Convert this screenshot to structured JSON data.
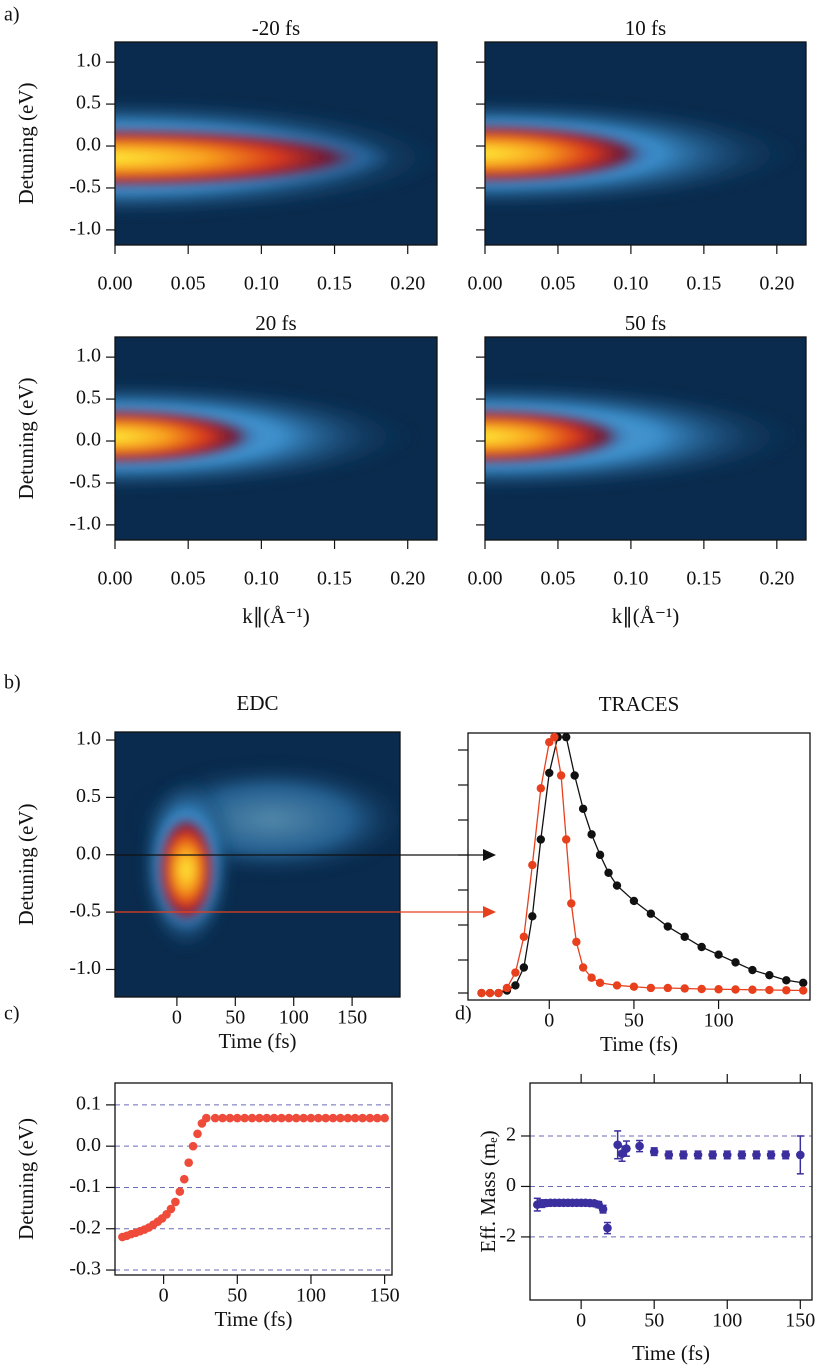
{
  "panel_labels": [
    "a)",
    "b)",
    "c)",
    "d)"
  ],
  "chart_data": [
    {
      "type": "heatmap",
      "title": "-20 fs",
      "ylabel": "Detuning (eV)",
      "xlim": [
        0,
        0.22
      ],
      "xticks": [
        {
          "value": 0,
          "label": "0.00"
        },
        {
          "value": 0.05,
          "label": "0.05"
        },
        {
          "value": 0.1,
          "label": "0.10"
        },
        {
          "value": 0.15,
          "label": "0.15"
        },
        {
          "value": 0.2,
          "label": "0.20"
        }
      ],
      "ylim": [
        -1.18,
        1.24
      ],
      "yticks": [
        {
          "value": -1,
          "label": "-1.0"
        },
        -0.5,
        {
          "value": 0,
          "label": "0.0"
        },
        0.5,
        {
          "value": 1,
          "label": "1.0"
        }
      ]
    },
    {
      "type": "heatmap",
      "title": "10 fs",
      "xlim": [
        0,
        0.22
      ],
      "xticks": [
        {
          "value": 0,
          "label": "0.00"
        },
        {
          "value": 0.05,
          "label": "0.05"
        },
        {
          "value": 0.1,
          "label": "0.10"
        },
        {
          "value": 0.15,
          "label": "0.15"
        },
        {
          "value": 0.2,
          "label": "0.20"
        }
      ],
      "ylim": [
        -1.18,
        1.24
      ],
      "yticks": [
        {
          "value": -1
        },
        {
          "value": -0.5
        },
        {
          "value": 0
        },
        {
          "value": 0.5
        },
        {
          "value": 1
        }
      ]
    },
    {
      "type": "heatmap",
      "title": "20 fs",
      "ylabel": "Detuning (eV)",
      "xlabel": "k∥(Å⁻¹)",
      "xlim": [
        0,
        0.22
      ],
      "xticks": [
        {
          "value": 0,
          "label": "0.00"
        },
        {
          "value": 0.05,
          "label": "0.05"
        },
        {
          "value": 0.1,
          "label": "0.10"
        },
        {
          "value": 0.15,
          "label": "0.15"
        },
        {
          "value": 0.2,
          "label": "0.20"
        }
      ],
      "ylim": [
        -1.18,
        1.24
      ],
      "yticks": [
        {
          "value": -1,
          "label": "-1.0"
        },
        -0.5,
        {
          "value": 0,
          "label": "0.0"
        },
        0.5,
        {
          "value": 1,
          "label": "1.0"
        }
      ]
    },
    {
      "type": "heatmap",
      "title": "50 fs",
      "xlabel": "k∥(Å⁻¹)",
      "xlim": [
        0,
        0.22
      ],
      "xticks": [
        {
          "value": 0,
          "label": "0.00"
        },
        {
          "value": 0.05,
          "label": "0.05"
        },
        {
          "value": 0.1,
          "label": "0.10"
        },
        {
          "value": 0.15,
          "label": "0.15"
        },
        {
          "value": 0.2,
          "label": "0.20"
        }
      ],
      "ylim": [
        -1.18,
        1.24
      ],
      "yticks": [
        {
          "value": -1
        },
        {
          "value": -0.5
        },
        {
          "value": 0
        },
        {
          "value": 0.5
        },
        {
          "value": 1
        }
      ]
    },
    {
      "type": "heatmap",
      "title": "EDC",
      "ylabel": "Detuning (eV)",
      "xlabel": "Time (fs)",
      "xlim": [
        -53,
        191
      ],
      "xticks": [
        0,
        50,
        100,
        150
      ],
      "ylim": [
        -1.24,
        1.07
      ],
      "yticks": [
        {
          "value": -1,
          "label": "-1.0"
        },
        -0.5,
        {
          "value": 0,
          "label": "0.0"
        },
        0.5,
        {
          "value": 1,
          "label": "1.0"
        }
      ]
    },
    {
      "type": "line",
      "title": "TRACES",
      "xlabel": "Time (fs)",
      "xlim": [
        -48,
        154
      ],
      "xticks": [
        0,
        50,
        100
      ],
      "ylim": [
        -0.027,
        1.016
      ],
      "series": [
        {
          "color": "#111111",
          "x": [
            -40,
            -35,
            -30,
            -25,
            -20,
            -15,
            -10,
            -5,
            0,
            5,
            10,
            15,
            20,
            25,
            30,
            35,
            40,
            50,
            60,
            70,
            80,
            90,
            100,
            110,
            120,
            130,
            140,
            150
          ],
          "values": [
            0,
            0,
            0,
            0.01,
            0.03,
            0.1,
            0.3,
            0.6,
            0.86,
            1.0,
            1.0,
            0.85,
            0.72,
            0.62,
            0.54,
            0.47,
            0.42,
            0.36,
            0.31,
            0.26,
            0.22,
            0.18,
            0.15,
            0.12,
            0.09,
            0.07,
            0.05,
            0.04
          ]
        },
        {
          "color": "#e8401c",
          "x": [
            -40,
            -35,
            -30,
            -25,
            -20,
            -15,
            -10,
            -5,
            0,
            3,
            7,
            10,
            13,
            16,
            20,
            25,
            30,
            40,
            50,
            60,
            70,
            80,
            90,
            100,
            110,
            120,
            130,
            140,
            150
          ],
          "values": [
            0,
            0,
            0,
            0.02,
            0.08,
            0.22,
            0.5,
            0.8,
            0.98,
            1.0,
            0.85,
            0.6,
            0.35,
            0.2,
            0.1,
            0.06,
            0.04,
            0.03,
            0.025,
            0.02,
            0.02,
            0.018,
            0.016,
            0.015,
            0.014,
            0.013,
            0.012,
            0.011,
            0.01
          ]
        }
      ]
    },
    {
      "type": "scatter",
      "ylabel": "Detuning (eV)",
      "xlabel": "Time (fs)",
      "color": "#ef4b3a",
      "grid": true,
      "xlim": [
        -33,
        155
      ],
      "xticks": [
        0,
        50,
        100,
        150
      ],
      "ylim": [
        -0.312,
        0.153
      ],
      "yticks": [
        -0.3,
        -0.2,
        -0.1,
        {
          "value": 0,
          "label": "0.0"
        },
        0.1
      ],
      "x": [
        -28,
        -25,
        -22,
        -19,
        -16,
        -13,
        -10,
        -7,
        -4,
        -1,
        2,
        5,
        8,
        11,
        14,
        17,
        20,
        23,
        26,
        29,
        35,
        40,
        45,
        50,
        55,
        60,
        65,
        70,
        75,
        80,
        85,
        90,
        95,
        100,
        105,
        110,
        115,
        120,
        125,
        130,
        135,
        140,
        145,
        150
      ],
      "values": [
        -0.22,
        -0.217,
        -0.213,
        -0.21,
        -0.206,
        -0.202,
        -0.197,
        -0.19,
        -0.183,
        -0.175,
        -0.165,
        -0.152,
        -0.135,
        -0.11,
        -0.08,
        -0.04,
        0.0,
        0.03,
        0.055,
        0.068,
        0.068,
        0.068,
        0.068,
        0.068,
        0.068,
        0.068,
        0.068,
        0.068,
        0.068,
        0.068,
        0.068,
        0.068,
        0.068,
        0.068,
        0.068,
        0.068,
        0.068,
        0.068,
        0.068,
        0.068,
        0.068,
        0.068,
        0.068,
        0.068
      ]
    },
    {
      "type": "errorbar",
      "ylabel": "Eff. Mass (mₑ)",
      "xlabel": "Time (fs)",
      "color": "#3b2e9e",
      "grid": true,
      "xlim": [
        -35,
        158
      ],
      "xticks": [
        0,
        50,
        100,
        150
      ],
      "ylim": [
        -4.5,
        4.1
      ],
      "yticks": [
        -2,
        0,
        2
      ],
      "x": [
        -30,
        -27,
        -24,
        -21,
        -18,
        -15,
        -12,
        -9,
        -6,
        -3,
        0,
        3,
        6,
        9,
        12,
        15,
        18,
        25,
        28,
        31,
        40,
        50,
        60,
        70,
        80,
        90,
        100,
        110,
        120,
        130,
        140,
        150
      ],
      "values": [
        -0.72,
        -0.68,
        -0.66,
        -0.65,
        -0.65,
        -0.65,
        -0.65,
        -0.65,
        -0.65,
        -0.65,
        -0.65,
        -0.65,
        -0.66,
        -0.67,
        -0.72,
        -0.9,
        -1.65,
        1.65,
        1.3,
        1.5,
        1.6,
        1.38,
        1.25,
        1.25,
        1.25,
        1.25,
        1.25,
        1.25,
        1.25,
        1.25,
        1.25,
        1.25
      ],
      "errors": [
        0.25,
        0.15,
        0.12,
        0.1,
        0.1,
        0.1,
        0.1,
        0.1,
        0.1,
        0.1,
        0.1,
        0.1,
        0.1,
        0.1,
        0.12,
        0.15,
        0.22,
        0.55,
        0.3,
        0.3,
        0.22,
        0.15,
        0.15,
        0.15,
        0.15,
        0.15,
        0.15,
        0.15,
        0.15,
        0.15,
        0.15,
        0.75
      ]
    }
  ]
}
